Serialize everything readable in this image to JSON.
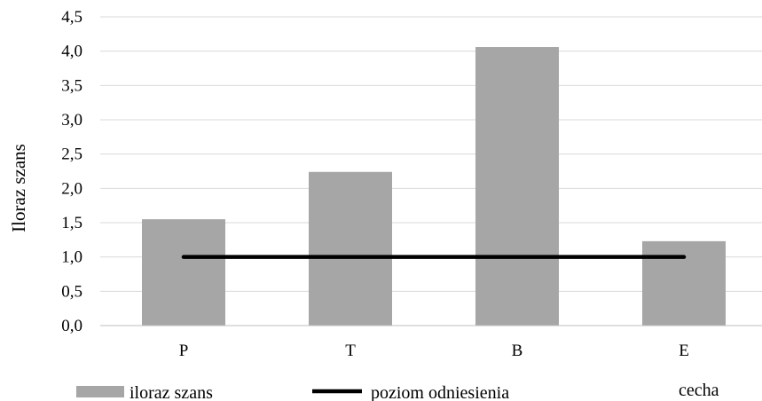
{
  "chart_data": {
    "type": "bar",
    "ylabel": "Iloraz szans",
    "xlabel": "cecha",
    "categories": [
      "P",
      "T",
      "B",
      "E"
    ],
    "series": [
      {
        "name": "iloraz szans",
        "type": "bar",
        "values": [
          1.55,
          2.24,
          4.06,
          1.23
        ],
        "color": "#a6a6a6"
      },
      {
        "name": "poziom odniesienia",
        "type": "line",
        "values": [
          1.0,
          1.0,
          1.0,
          1.0
        ],
        "color": "#000000"
      }
    ],
    "ylim": [
      0,
      4.5
    ],
    "yticks": [
      "0,0",
      "0,5",
      "1,0",
      "1,5",
      "2,0",
      "2,5",
      "3,0",
      "3,5",
      "4,0",
      "4,5"
    ],
    "ytick_values": [
      0,
      0.5,
      1.0,
      1.5,
      2.0,
      2.5,
      3.0,
      3.5,
      4.0,
      4.5
    ],
    "grid": true,
    "legend": "bottom-left"
  }
}
